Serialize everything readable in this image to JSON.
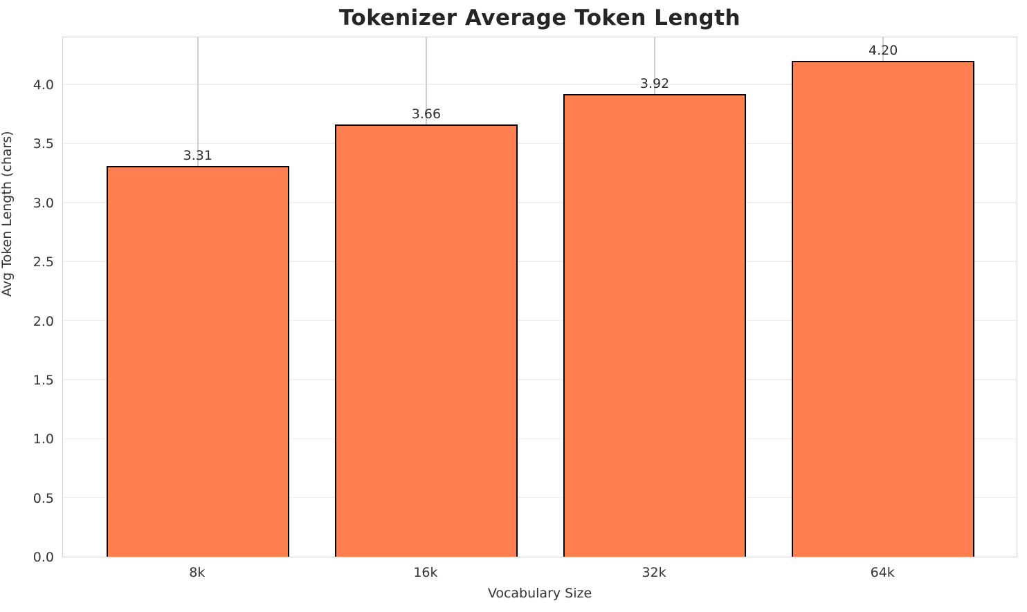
{
  "chart_data": {
    "type": "bar",
    "title": "Tokenizer Average Token Length",
    "xlabel": "Vocabulary Size",
    "ylabel": "Avg Token Length (chars)",
    "categories": [
      "8k",
      "16k",
      "32k",
      "64k"
    ],
    "values": [
      3.31,
      3.66,
      3.92,
      4.2
    ],
    "bar_labels": [
      "3.31",
      "3.66",
      "3.92",
      "4.20"
    ],
    "ylim": [
      0,
      4.41
    ],
    "yticks": [
      0.0,
      0.5,
      1.0,
      1.5,
      2.0,
      2.5,
      3.0,
      3.5,
      4.0
    ],
    "grid": true,
    "legend": "none",
    "bar_color": "#FF7F50",
    "bar_edge_color": "#000000"
  }
}
